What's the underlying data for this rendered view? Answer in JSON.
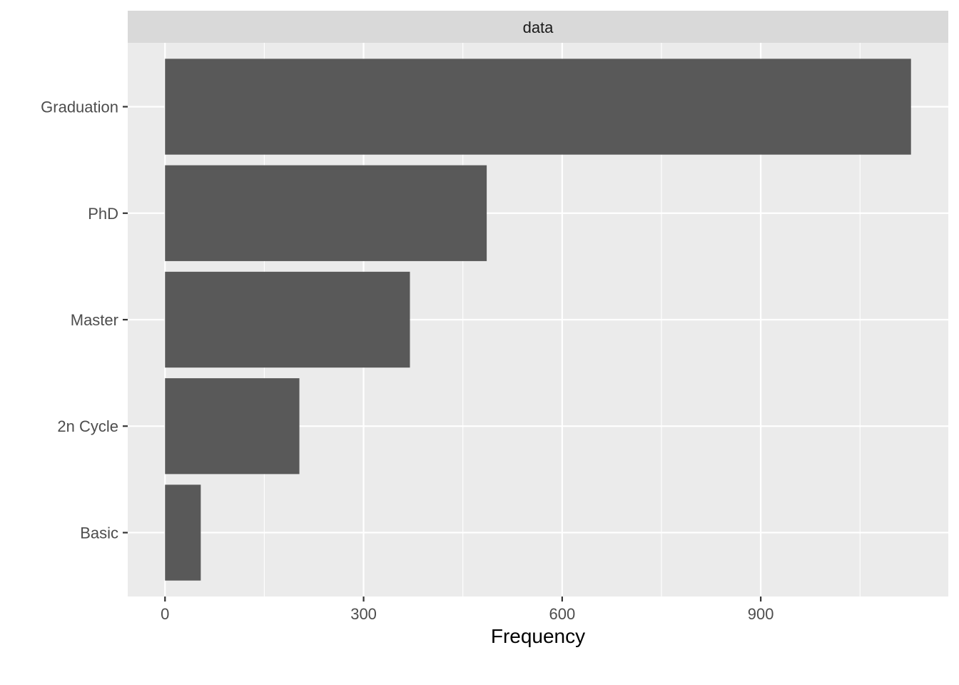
{
  "chart_data": {
    "type": "bar",
    "orientation": "horizontal",
    "facet_label": "data",
    "categories": [
      "Graduation",
      "PhD",
      "Master",
      "2n Cycle",
      "Basic"
    ],
    "values": [
      1127,
      486,
      370,
      203,
      54
    ],
    "xlabel": "Frequency",
    "ylabel": "",
    "xlim": [
      -56.35,
      1183.35
    ],
    "xticks": [
      0,
      300,
      600,
      900
    ],
    "xtick_labels": [
      "0",
      "300",
      "600",
      "900"
    ],
    "grid": true,
    "colors": {
      "panel_background": "#ebebeb",
      "strip_background": "#d9d9d9",
      "grid_major": "#ffffff",
      "bar_fill": "#595959",
      "tick": "#333333"
    }
  }
}
